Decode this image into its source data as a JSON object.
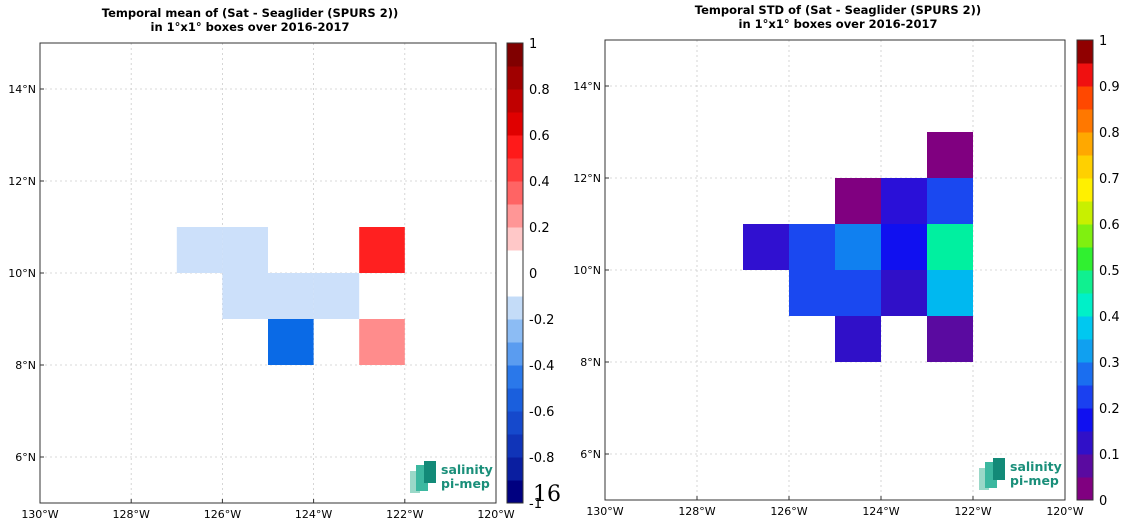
{
  "page_number": "16",
  "chart_data": [
    {
      "type": "heatmap",
      "title_line1": "Temporal mean of (Sat - Seaglider (SPURS 2))",
      "title_line2": "in 1°x1° boxes over 2016-2017",
      "x_ticks": [
        {
          "value": -130,
          "label": "130°W"
        },
        {
          "value": -128,
          "label": "128°W"
        },
        {
          "value": -126,
          "label": "126°W"
        },
        {
          "value": -124,
          "label": "124°W"
        },
        {
          "value": -122,
          "label": "122°W"
        },
        {
          "value": -120,
          "label": "120°W"
        }
      ],
      "y_ticks": [
        {
          "value": 6,
          "label": "6°N"
        },
        {
          "value": 8,
          "label": "8°N"
        },
        {
          "value": 10,
          "label": "10°N"
        },
        {
          "value": 12,
          "label": "12°N"
        },
        {
          "value": 14,
          "label": "14°N"
        }
      ],
      "xlim": [
        -130,
        -120
      ],
      "ylim": [
        5,
        15
      ],
      "grid": true,
      "colorbar": {
        "min": -1,
        "max": 1,
        "ticks": [
          {
            "value": 1,
            "label": "1"
          },
          {
            "value": 0.8,
            "label": "0.8"
          },
          {
            "value": 0.6,
            "label": "0.6"
          },
          {
            "value": 0.4,
            "label": "0.4"
          },
          {
            "value": 0.2,
            "label": "0.2"
          },
          {
            "value": 0,
            "label": "0"
          },
          {
            "value": -0.2,
            "label": "-0.2"
          },
          {
            "value": -0.4,
            "label": "-0.4"
          },
          {
            "value": -0.6,
            "label": "-0.6"
          },
          {
            "value": -0.8,
            "label": "-0.8"
          },
          {
            "value": -1,
            "label": "-1"
          }
        ],
        "colors": [
          "#000080",
          "#0a1ea0",
          "#1034b8",
          "#1549cc",
          "#1a5fdd",
          "#2a78ea",
          "#5a9cf0",
          "#8cbcf4",
          "#c4dcf8",
          "#ffffff",
          "#ffffff",
          "#ffc8c8",
          "#ff9696",
          "#ff6464",
          "#ff3c3c",
          "#ff1a1a",
          "#e00000",
          "#c00000",
          "#a00000",
          "#800000"
        ]
      },
      "cells": [
        {
          "lon": -127,
          "lat": 10,
          "value": -0.15,
          "color": "#cce0fa"
        },
        {
          "lon": -126,
          "lat": 10,
          "value": -0.15,
          "color": "#cce0fa"
        },
        {
          "lon": -126,
          "lat": 9,
          "value": -0.15,
          "color": "#cce0fa"
        },
        {
          "lon": -125,
          "lat": 9,
          "value": -0.15,
          "color": "#cce0fa"
        },
        {
          "lon": -124,
          "lat": 9,
          "value": -0.15,
          "color": "#cce0fa"
        },
        {
          "lon": -123,
          "lat": 10,
          "value": 0.85,
          "color": "#ff2020"
        },
        {
          "lon": -125,
          "lat": 8,
          "value": -0.55,
          "color": "#0a6ae6"
        },
        {
          "lon": -123,
          "lat": 8,
          "value": 0.45,
          "color": "#ff8c8c"
        }
      ],
      "logo": {
        "line1": "salinity",
        "line2": "pi-mep"
      }
    },
    {
      "type": "heatmap",
      "title_line1": "Temporal STD of (Sat - Seaglider (SPURS 2))",
      "title_line2": "in 1°x1° boxes over 2016-2017",
      "x_ticks": [
        {
          "value": -130,
          "label": "130°W"
        },
        {
          "value": -128,
          "label": "128°W"
        },
        {
          "value": -126,
          "label": "126°W"
        },
        {
          "value": -124,
          "label": "124°W"
        },
        {
          "value": -122,
          "label": "122°W"
        },
        {
          "value": -120,
          "label": "120°W"
        }
      ],
      "y_ticks": [
        {
          "value": 6,
          "label": "6°N"
        },
        {
          "value": 8,
          "label": "8°N"
        },
        {
          "value": 10,
          "label": "10°N"
        },
        {
          "value": 12,
          "label": "12°N"
        },
        {
          "value": 14,
          "label": "14°N"
        }
      ],
      "xlim": [
        -130,
        -120
      ],
      "ylim": [
        5,
        15
      ],
      "grid": true,
      "colorbar": {
        "min": 0,
        "max": 1,
        "ticks": [
          {
            "value": 1,
            "label": "1"
          },
          {
            "value": 0.9,
            "label": "0.9"
          },
          {
            "value": 0.8,
            "label": "0.8"
          },
          {
            "value": 0.7,
            "label": "0.7"
          },
          {
            "value": 0.6,
            "label": "0.6"
          },
          {
            "value": 0.5,
            "label": "0.5"
          },
          {
            "value": 0.4,
            "label": "0.4"
          },
          {
            "value": 0.3,
            "label": "0.3"
          },
          {
            "value": 0.2,
            "label": "0.2"
          },
          {
            "value": 0.1,
            "label": "0.1"
          },
          {
            "value": 0,
            "label": "0"
          }
        ],
        "colors": [
          "#800080",
          "#5a0aa0",
          "#3010c8",
          "#1010f0",
          "#1a40f0",
          "#1a6ef0",
          "#10a0f0",
          "#00c8f0",
          "#00f0c8",
          "#10f090",
          "#30f030",
          "#80f010",
          "#c8f000",
          "#fff000",
          "#ffd000",
          "#ffa800",
          "#ff7800",
          "#ff4800",
          "#f01010",
          "#900000"
        ]
      },
      "cells": [
        {
          "lon": -123,
          "lat": 12,
          "value": 0.02,
          "color": "#800080"
        },
        {
          "lon": -125,
          "lat": 11,
          "value": 0.02,
          "color": "#800080"
        },
        {
          "lon": -124,
          "lat": 11,
          "value": 0.13,
          "color": "#2a10d8"
        },
        {
          "lon": -123,
          "lat": 11,
          "value": 0.23,
          "color": "#1a48f0"
        },
        {
          "lon": -127,
          "lat": 10,
          "value": 0.13,
          "color": "#3010d0"
        },
        {
          "lon": -126,
          "lat": 10,
          "value": 0.23,
          "color": "#1a48f0"
        },
        {
          "lon": -125,
          "lat": 10,
          "value": 0.28,
          "color": "#1080f0"
        },
        {
          "lon": -124,
          "lat": 10,
          "value": 0.18,
          "color": "#1010f0"
        },
        {
          "lon": -123,
          "lat": 10,
          "value": 0.43,
          "color": "#00f0a0"
        },
        {
          "lon": -126,
          "lat": 9,
          "value": 0.23,
          "color": "#1a48f0"
        },
        {
          "lon": -125,
          "lat": 9,
          "value": 0.23,
          "color": "#1a48f0"
        },
        {
          "lon": -124,
          "lat": 9,
          "value": 0.13,
          "color": "#3010c8"
        },
        {
          "lon": -123,
          "lat": 9,
          "value": 0.33,
          "color": "#00b8f0"
        },
        {
          "lon": -125,
          "lat": 8,
          "value": 0.13,
          "color": "#3010c8"
        },
        {
          "lon": -123,
          "lat": 8,
          "value": 0.08,
          "color": "#5a0aa0"
        }
      ],
      "logo": {
        "line1": "salinity",
        "line2": "pi-mep"
      }
    }
  ]
}
